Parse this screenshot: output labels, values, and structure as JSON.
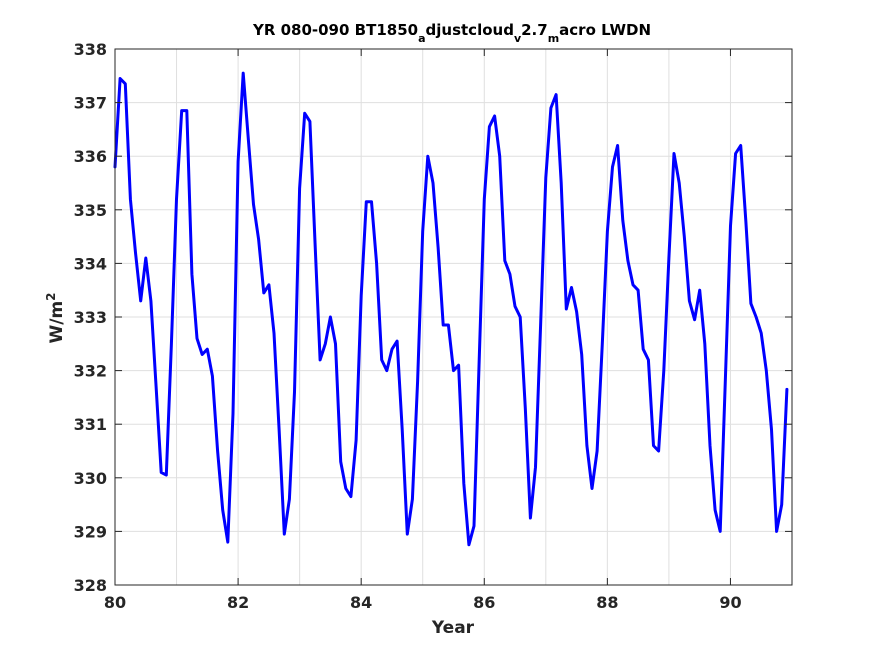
{
  "chart_data": {
    "type": "line",
    "title": {
      "parts": [
        {
          "text": "YR 080-090 BT1850",
          "shift": "none"
        },
        {
          "text": "a",
          "shift": "sub"
        },
        {
          "text": "djustcloud",
          "shift": "none"
        },
        {
          "text": "v",
          "shift": "sub"
        },
        {
          "text": "2.7",
          "shift": "none"
        },
        {
          "text": "m",
          "shift": "sub"
        },
        {
          "text": "acro LWDN",
          "shift": "none"
        }
      ]
    },
    "xlabel": "Year",
    "ylabel": {
      "base": "W/m",
      "sup": "2"
    },
    "xlim": [
      80,
      91
    ],
    "ylim": [
      328,
      338
    ],
    "xticks": [
      80,
      82,
      84,
      86,
      88,
      90
    ],
    "yticks": [
      328,
      329,
      330,
      331,
      332,
      333,
      334,
      335,
      336,
      337,
      338
    ],
    "grid": true,
    "series_color": "#0000ff",
    "series": [
      {
        "x": [
          80.0,
          80.083,
          80.167,
          80.25,
          80.333,
          80.417,
          80.5,
          80.583,
          80.667,
          80.75,
          80.833,
          80.917,
          81.0,
          81.083,
          81.167,
          81.25,
          81.333,
          81.417,
          81.5,
          81.583,
          81.667,
          81.75,
          81.833,
          81.917,
          82.0,
          82.083,
          82.167,
          82.25,
          82.333,
          82.417,
          82.5,
          82.583,
          82.667,
          82.75,
          82.833,
          82.917,
          83.0,
          83.083,
          83.167,
          83.25,
          83.333,
          83.417,
          83.5,
          83.583,
          83.667,
          83.75,
          83.833,
          83.917,
          84.0,
          84.083,
          84.167,
          84.25,
          84.333,
          84.417,
          84.5,
          84.583,
          84.667,
          84.75,
          84.833,
          84.917,
          85.0,
          85.083,
          85.167,
          85.25,
          85.333,
          85.417,
          85.5,
          85.583,
          85.667,
          85.75,
          85.833,
          85.917,
          86.0,
          86.083,
          86.167,
          86.25,
          86.333,
          86.417,
          86.5,
          86.583,
          86.667,
          86.75,
          86.833,
          86.917,
          87.0,
          87.083,
          87.167,
          87.25,
          87.333,
          87.417,
          87.5,
          87.583,
          87.667,
          87.75,
          87.833,
          87.917,
          88.0,
          88.083,
          88.167,
          88.25,
          88.333,
          88.417,
          88.5,
          88.583,
          88.667,
          88.75,
          88.833,
          88.917,
          89.0,
          89.083,
          89.167,
          89.25,
          89.333,
          89.417,
          89.5,
          89.583,
          89.667,
          89.75,
          89.833,
          89.917,
          90.0,
          90.083,
          90.167,
          90.25,
          90.333,
          90.417,
          90.5,
          90.583,
          90.667,
          90.75,
          90.833,
          90.917
        ],
        "y": [
          335.8,
          337.45,
          337.35,
          335.2,
          334.2,
          333.3,
          334.1,
          333.3,
          331.7,
          330.1,
          330.05,
          332.5,
          335.2,
          336.85,
          336.85,
          333.8,
          332.6,
          332.3,
          332.4,
          331.9,
          330.5,
          329.4,
          328.8,
          331.2,
          335.9,
          337.55,
          336.3,
          335.1,
          334.45,
          333.45,
          333.6,
          332.7,
          330.9,
          328.95,
          329.6,
          331.6,
          335.4,
          336.8,
          336.65,
          334.4,
          332.2,
          332.5,
          333.0,
          332.5,
          330.3,
          329.8,
          329.65,
          330.7,
          333.4,
          335.15,
          335.15,
          334.0,
          332.2,
          332.0,
          332.4,
          332.55,
          330.9,
          328.95,
          329.6,
          331.8,
          334.6,
          336.0,
          335.5,
          334.3,
          332.85,
          332.85,
          332.0,
          332.1,
          329.9,
          328.75,
          329.1,
          332.2,
          335.2,
          336.55,
          336.75,
          336.0,
          334.05,
          333.8,
          333.2,
          333.0,
          331.3,
          329.25,
          330.2,
          332.9,
          335.6,
          336.9,
          337.15,
          335.5,
          333.15,
          333.55,
          333.1,
          332.3,
          330.6,
          329.8,
          330.5,
          332.5,
          334.6,
          335.8,
          336.2,
          334.8,
          334.05,
          333.6,
          333.5,
          332.4,
          332.2,
          330.6,
          330.5,
          332.0,
          334.1,
          336.05,
          335.5,
          334.5,
          333.3,
          332.95,
          333.5,
          332.5,
          330.6,
          329.4,
          329.0,
          331.8,
          334.7,
          336.05,
          336.2,
          334.8,
          333.25,
          333.0,
          332.7,
          332.0,
          330.9,
          329.0,
          329.5,
          331.65
        ]
      }
    ]
  }
}
